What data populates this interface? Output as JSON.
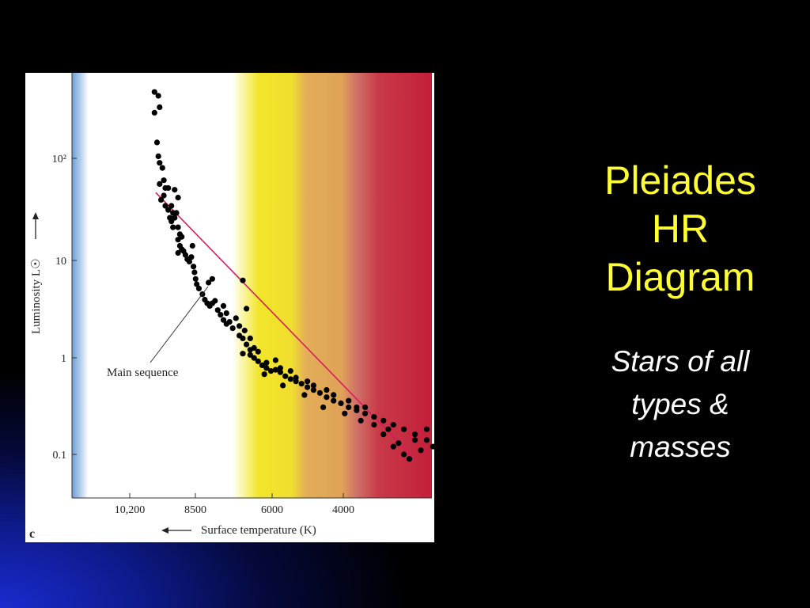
{
  "slide": {
    "title_lines": [
      "Pleiades",
      "HR",
      "Diagram"
    ],
    "subtitle_lines": [
      "Stars of all",
      "types &",
      "masses"
    ]
  },
  "chart_data": {
    "type": "scatter",
    "panel_label": "c",
    "xlabel": "Surface temperature (K)",
    "ylabel": "Luminosity L☉",
    "x_tick_labels": [
      "10,200",
      "8500",
      "6000",
      "4000"
    ],
    "y_tick_labels": [
      "10²",
      "10",
      "1",
      "0.1"
    ],
    "y_scale": "log",
    "x_direction": "decreasing to the right",
    "annotation": "Main sequence",
    "band_colors": [
      "#6f9fd6",
      "#ffffff",
      "#f2e52a",
      "#e0a055",
      "#c8283c"
    ],
    "main_sequence_line_color": "#d81b60",
    "main_sequence_line": [
      [
        10200,
        45
      ],
      [
        3400,
        0.09
      ]
    ],
    "points": [
      [
        10300,
        470
      ],
      [
        10000,
        430
      ],
      [
        9900,
        330
      ],
      [
        10300,
        290
      ],
      [
        10100,
        145
      ],
      [
        10000,
        105
      ],
      [
        9900,
        90
      ],
      [
        9700,
        80
      ],
      [
        9900,
        55
      ],
      [
        9600,
        60
      ],
      [
        9500,
        50
      ],
      [
        9300,
        50
      ],
      [
        9600,
        42
      ],
      [
        9800,
        38
      ],
      [
        9500,
        33
      ],
      [
        9300,
        30
      ],
      [
        9100,
        33
      ],
      [
        9000,
        28
      ],
      [
        9200,
        25
      ],
      [
        9100,
        23
      ],
      [
        9000,
        20
      ],
      [
        8900,
        25
      ],
      [
        8800,
        28
      ],
      [
        8900,
        48
      ],
      [
        8700,
        40
      ],
      [
        8700,
        20
      ],
      [
        8600,
        17
      ],
      [
        8700,
        15
      ],
      [
        8500,
        16
      ],
      [
        8600,
        13
      ],
      [
        8500,
        12
      ],
      [
        8700,
        11
      ],
      [
        8400,
        11.5
      ],
      [
        8300,
        10.5
      ],
      [
        8200,
        9.5
      ],
      [
        8100,
        9
      ],
      [
        8000,
        10
      ],
      [
        7950,
        13
      ],
      [
        7900,
        8
      ],
      [
        7850,
        7
      ],
      [
        7800,
        6
      ],
      [
        7750,
        5.3
      ],
      [
        7650,
        4.8
      ],
      [
        7500,
        4.2
      ],
      [
        7400,
        3.7
      ],
      [
        7300,
        3.4
      ],
      [
        7200,
        3.2
      ],
      [
        7100,
        3.4
      ],
      [
        7000,
        3.6
      ],
      [
        7250,
        5.5
      ],
      [
        7100,
        6
      ],
      [
        6900,
        2.9
      ],
      [
        6800,
        2.6
      ],
      [
        6700,
        2.3
      ],
      [
        6600,
        2.1
      ],
      [
        6500,
        2.2
      ],
      [
        6400,
        1.9
      ],
      [
        6600,
        2.7
      ],
      [
        6700,
        3.2
      ],
      [
        6200,
        1.6
      ],
      [
        6100,
        1.5
      ],
      [
        6000,
        1.3
      ],
      [
        5900,
        1.15
      ],
      [
        6100,
        1.05
      ],
      [
        5900,
        1.02
      ],
      [
        5800,
        0.95
      ],
      [
        5700,
        0.88
      ],
      [
        5600,
        0.8
      ],
      [
        5500,
        0.75
      ],
      [
        5400,
        0.7
      ],
      [
        5300,
        0.72
      ],
      [
        5200,
        0.68
      ],
      [
        5100,
        0.62
      ],
      [
        5000,
        0.58
      ],
      [
        4900,
        0.55
      ],
      [
        4800,
        0.52
      ],
      [
        4700,
        0.48
      ],
      [
        4600,
        0.45
      ],
      [
        4500,
        0.42
      ],
      [
        4400,
        0.38
      ],
      [
        4300,
        0.35
      ],
      [
        4200,
        0.33
      ],
      [
        4100,
        0.3
      ],
      [
        4000,
        0.28
      ],
      [
        3900,
        0.26
      ],
      [
        3800,
        0.24
      ],
      [
        3700,
        0.22
      ],
      [
        3600,
        0.2
      ],
      [
        3500,
        0.18
      ],
      [
        3400,
        0.16
      ],
      [
        3300,
        0.14
      ],
      [
        3250,
        0.12
      ],
      [
        3200,
        0.1
      ],
      [
        3150,
        0.085
      ],
      [
        3100,
        0.075
      ],
      [
        5800,
        1.2
      ],
      [
        5500,
        0.85
      ],
      [
        5200,
        0.75
      ],
      [
        4900,
        0.6
      ],
      [
        4600,
        0.5
      ],
      [
        4300,
        0.4
      ],
      [
        4000,
        0.3
      ],
      [
        3800,
        0.2
      ],
      [
        3700,
        0.16
      ],
      [
        3600,
        0.12
      ],
      [
        3500,
        0.1
      ],
      [
        3400,
        0.14
      ],
      [
        3300,
        0.18
      ],
      [
        3200,
        0.12
      ],
      [
        5900,
        1.5
      ],
      [
        5700,
        1.1
      ],
      [
        5300,
        0.9
      ],
      [
        5000,
        0.7
      ],
      [
        4700,
        0.55
      ],
      [
        4400,
        0.45
      ],
      [
        4100,
        0.35
      ],
      [
        3900,
        0.3
      ],
      [
        6200,
        2.0
      ],
      [
        6100,
        5.8
      ],
      [
        6000,
        3.0
      ],
      [
        6300,
        2.4
      ],
      [
        6050,
        1.8
      ],
      [
        5550,
        0.65
      ],
      [
        5150,
        0.5
      ],
      [
        4750,
        0.4
      ],
      [
        4450,
        0.3
      ],
      [
        4150,
        0.26
      ],
      [
        3950,
        0.22
      ],
      [
        3650,
        0.18
      ],
      [
        3550,
        0.13
      ],
      [
        3450,
        0.09
      ],
      [
        3350,
        0.11
      ],
      [
        3150,
        0.15
      ]
    ]
  }
}
